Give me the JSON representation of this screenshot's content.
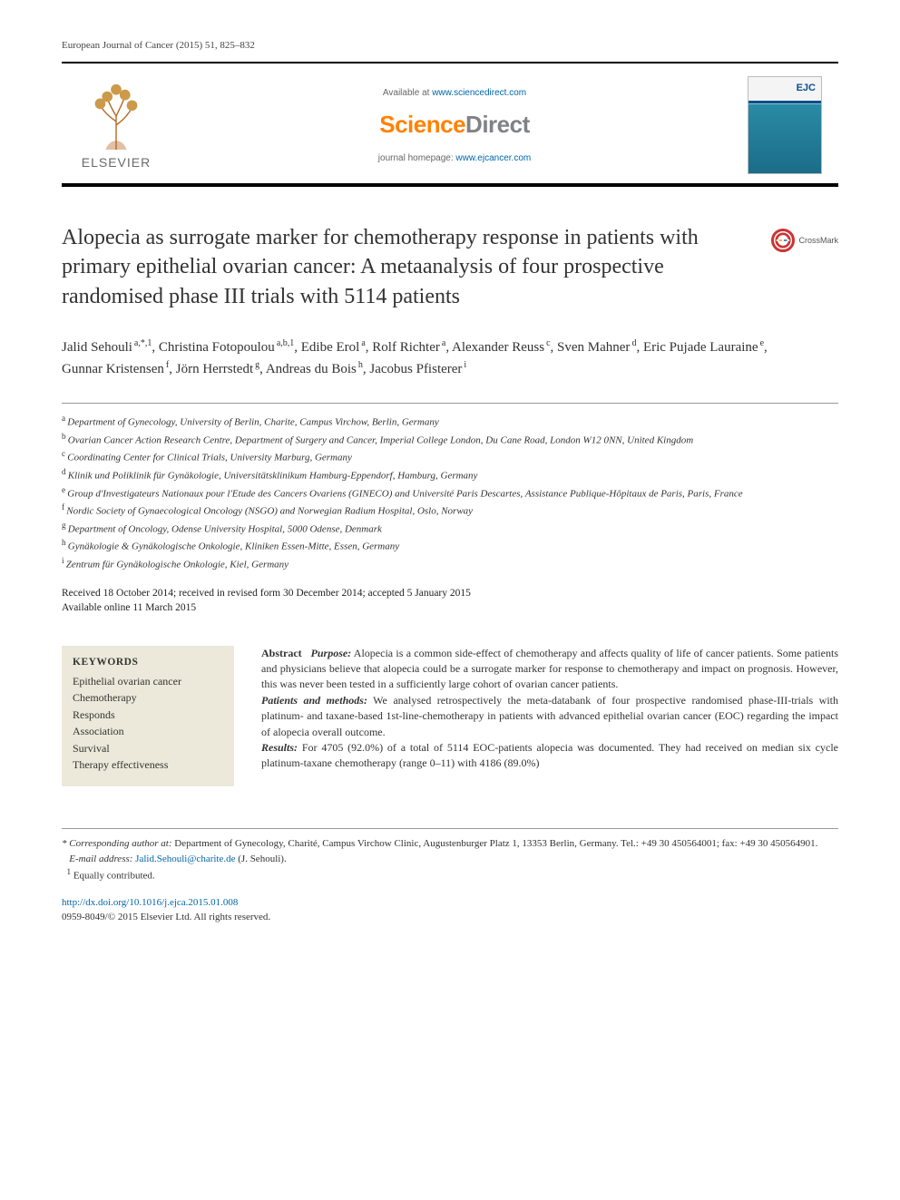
{
  "running_head": "European Journal of Cancer (2015) 51, 825–832",
  "masthead": {
    "available_prefix": "Available at ",
    "available_url": "www.sciencedirect.com",
    "sd_part1": "Science",
    "sd_part2": "Direct",
    "homepage_prefix": "journal homepage: ",
    "homepage_url": "www.ejcancer.com",
    "elsevier": "ELSEVIER",
    "cover_label": "EJC"
  },
  "crossmark": "CrossMark",
  "title": "Alopecia as surrogate marker for chemotherapy response in patients with primary epithelial ovarian cancer: A metaanalysis of four prospective randomised phase III trials with 5114 patients",
  "authors": [
    {
      "name": "Jalid Sehouli",
      "sup": "a,*,1"
    },
    {
      "name": "Christina Fotopoulou",
      "sup": "a,b,1"
    },
    {
      "name": "Edibe Erol",
      "sup": "a"
    },
    {
      "name": "Rolf Richter",
      "sup": "a"
    },
    {
      "name": "Alexander Reuss",
      "sup": "c"
    },
    {
      "name": "Sven Mahner",
      "sup": "d"
    },
    {
      "name": "Eric Pujade Lauraine",
      "sup": "e"
    },
    {
      "name": "Gunnar Kristensen",
      "sup": "f"
    },
    {
      "name": "Jörn Herrstedt",
      "sup": "g"
    },
    {
      "name": "Andreas du Bois",
      "sup": "h"
    },
    {
      "name": "Jacobus Pfisterer",
      "sup": "i"
    }
  ],
  "affiliations": [
    {
      "key": "a",
      "text": "Department of Gynecology, University of Berlin, Charite, Campus Virchow, Berlin, Germany"
    },
    {
      "key": "b",
      "text": "Ovarian Cancer Action Research Centre, Department of Surgery and Cancer, Imperial College London, Du Cane Road, London W12 0NN, United Kingdom"
    },
    {
      "key": "c",
      "text": "Coordinating Center for Clinical Trials, University Marburg, Germany"
    },
    {
      "key": "d",
      "text": "Klinik und Poliklinik für Gynäkologie, Universitätsklinikum Hamburg-Eppendorf, Hamburg, Germany"
    },
    {
      "key": "e",
      "text": "Group d'Investigateurs Nationaux pour l'Etude des Cancers Ovariens (GINECO) and Université Paris Descartes, Assistance Publique-Hôpitaux de Paris, Paris, France"
    },
    {
      "key": "f",
      "text": "Nordic Society of Gynaecological Oncology (NSGO) and Norwegian Radium Hospital, Oslo, Norway"
    },
    {
      "key": "g",
      "text": "Department of Oncology, Odense University Hospital, 5000 Odense, Denmark"
    },
    {
      "key": "h",
      "text": "Gynäkologie & Gynäkologische Onkologie, Kliniken Essen-Mitte, Essen, Germany"
    },
    {
      "key": "i",
      "text": "Zentrum für Gynäkologische Onkologie, Kiel, Germany"
    }
  ],
  "dates": {
    "line1": "Received 18 October 2014; received in revised form 30 December 2014; accepted 5 January 2015",
    "line2": "Available online 11 March 2015"
  },
  "keywords": {
    "heading": "KEYWORDS",
    "items": [
      "Epithelial ovarian cancer",
      "Chemotherapy",
      "Responds",
      "Association",
      "Survival",
      "Therapy effectiveness"
    ]
  },
  "abstract": {
    "lead": "Abstract",
    "purpose_label": "Purpose:",
    "purpose_text": " Alopecia is a common side-effect of chemotherapy and affects quality of life of cancer patients. Some patients and physicians believe that alopecia could be a surrogate marker for response to chemotherapy and impact on prognosis. However, this was never been tested in a sufficiently large cohort of ovarian cancer patients.",
    "methods_label": "Patients and methods:",
    "methods_text": " We analysed retrospectively the meta-databank of four prospective randomised phase-III-trials with platinum- and taxane-based 1st-line-chemotherapy in patients with advanced epithelial ovarian cancer (EOC) regarding the impact of alopecia overall outcome.",
    "results_label": "Results:",
    "results_text": " For 4705 (92.0%) of a total of 5114 EOC-patients alopecia was documented. They had received on median six cycle platinum-taxane chemotherapy (range 0–11) with 4186 (89.0%)"
  },
  "footnotes": {
    "corr_label": "* Corresponding author at:",
    "corr_text": " Department of Gynecology, Charité, Campus Virchow Clinic, Augustenburger Platz 1, 13353 Berlin, Germany. Tel.: +49 30 450564001; fax: +49 30 450564901.",
    "email_label": "E-mail address:",
    "email_value": "Jalid.Sehouli@charite.de",
    "email_suffix": " (J. Sehouli).",
    "equal": "Equally contributed.",
    "equal_marker": "1"
  },
  "doi": {
    "url": "http://dx.doi.org/10.1016/j.ejca.2015.01.008",
    "issn_line": "0959-8049/© 2015 Elsevier Ltd. All rights reserved."
  },
  "colors": {
    "accent_orange": "#ff8200",
    "link_blue": "#0066a8",
    "kw_bg": "#ece9da",
    "rule": "#999999"
  }
}
